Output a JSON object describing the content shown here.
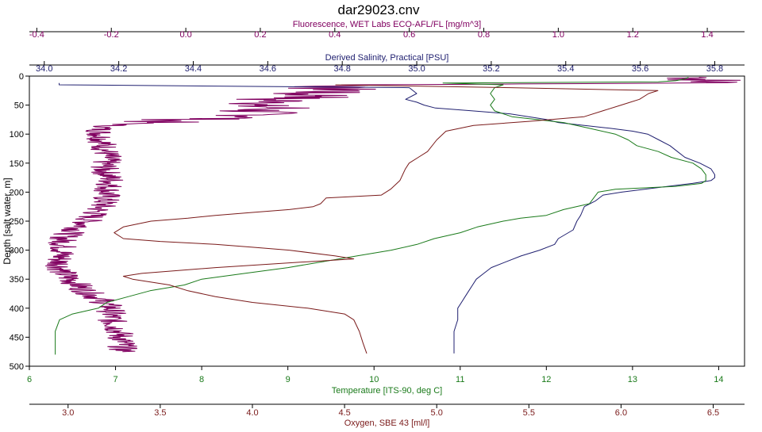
{
  "colors": {
    "fluorescence": "#800060",
    "salinity": "#202070",
    "temperature": "#1a7a1a",
    "oxygen": "#7a1a1a",
    "axis": "#000000",
    "background": "#ffffff"
  },
  "chart_data": {
    "type": "line",
    "title": "dar29023.cnv",
    "grid": false,
    "legend": "none",
    "y_axis": {
      "label": "Depth [salt water, m]",
      "range": [
        0,
        500
      ],
      "inverted": true,
      "ticks": [
        "0",
        "50",
        "100",
        "150",
        "200",
        "250",
        "300",
        "350",
        "400",
        "450",
        "500"
      ]
    },
    "x_axes": [
      {
        "key": "fluorescence",
        "label": "Fluorescence, WET Labs ECO-AFL/FL [mg/m^3]",
        "position": "top",
        "range": [
          -0.42,
          1.5
        ],
        "ticks": [
          "-0.4",
          "-0.2",
          "0.0",
          "0.2",
          "0.4",
          "0.6",
          "0.8",
          "1.0",
          "1.2",
          "1.4"
        ]
      },
      {
        "key": "salinity",
        "label": "Derived Salinity, Practical [PSU]",
        "position": "top",
        "range": [
          33.96,
          35.88
        ],
        "ticks": [
          "34.0",
          "34.2",
          "34.4",
          "34.6",
          "34.8",
          "35.0",
          "35.2",
          "35.4",
          "35.6",
          "35.8"
        ]
      },
      {
        "key": "temperature",
        "label": "Temperature [ITS-90, deg C]",
        "position": "bottom",
        "range": [
          6.0,
          14.3
        ],
        "ticks": [
          "6",
          "7",
          "8",
          "9",
          "10",
          "11",
          "12",
          "13",
          "14"
        ]
      },
      {
        "key": "oxygen",
        "label": "Oxygen, SBE 43 [ml/l]",
        "position": "bottom",
        "range": [
          2.79,
          6.67
        ],
        "ticks": [
          "3.0",
          "3.5",
          "4.0",
          "4.5",
          "5.0",
          "5.5",
          "6.0",
          "6.5"
        ]
      }
    ],
    "series": [
      {
        "axis": "fluorescence",
        "noise": 0.04,
        "points": [
          [
            1.38,
            2
          ],
          [
            1.4,
            8
          ],
          [
            1.42,
            12
          ],
          [
            0.5,
            15
          ],
          [
            0.35,
            20
          ],
          [
            0.45,
            25
          ],
          [
            0.3,
            30
          ],
          [
            0.4,
            35
          ],
          [
            0.2,
            40
          ],
          [
            0.3,
            45
          ],
          [
            0.15,
            50
          ],
          [
            0.25,
            55
          ],
          [
            0.18,
            60
          ],
          [
            0.2,
            70
          ],
          [
            0.0,
            75
          ],
          [
            -0.1,
            80
          ],
          [
            -0.2,
            85
          ],
          [
            -0.23,
            90
          ],
          [
            -0.23,
            100
          ],
          [
            -0.22,
            120
          ],
          [
            -0.21,
            140
          ],
          [
            -0.22,
            160
          ],
          [
            -0.2,
            180
          ],
          [
            -0.21,
            200
          ],
          [
            -0.22,
            220
          ],
          [
            -0.25,
            240
          ],
          [
            -0.28,
            260
          ],
          [
            -0.31,
            270
          ],
          [
            -0.33,
            280
          ],
          [
            -0.33,
            300
          ],
          [
            -0.34,
            320
          ],
          [
            -0.33,
            340
          ],
          [
            -0.3,
            355
          ],
          [
            -0.27,
            370
          ],
          [
            -0.23,
            385
          ],
          [
            -0.2,
            400
          ],
          [
            -0.2,
            420
          ],
          [
            -0.18,
            440
          ],
          [
            -0.17,
            460
          ],
          [
            -0.17,
            475
          ]
        ]
      },
      {
        "axis": "salinity",
        "noise": 0,
        "points": [
          [
            34.04,
            12
          ],
          [
            34.04,
            15
          ],
          [
            34.98,
            20
          ],
          [
            35.0,
            30
          ],
          [
            34.97,
            40
          ],
          [
            35.0,
            45
          ],
          [
            35.02,
            50
          ],
          [
            35.05,
            55
          ],
          [
            35.15,
            60
          ],
          [
            35.25,
            65
          ],
          [
            35.3,
            70
          ],
          [
            35.35,
            75
          ],
          [
            35.38,
            80
          ],
          [
            35.45,
            85
          ],
          [
            35.52,
            90
          ],
          [
            35.58,
            95
          ],
          [
            35.62,
            100
          ],
          [
            35.65,
            110
          ],
          [
            35.68,
            120
          ],
          [
            35.7,
            130
          ],
          [
            35.72,
            140
          ],
          [
            35.76,
            150
          ],
          [
            35.79,
            160
          ],
          [
            35.8,
            170
          ],
          [
            35.8,
            175
          ],
          [
            35.79,
            180
          ],
          [
            35.74,
            185
          ],
          [
            35.7,
            188
          ],
          [
            35.65,
            192
          ],
          [
            35.55,
            200
          ],
          [
            35.5,
            205
          ],
          [
            35.48,
            215
          ],
          [
            35.45,
            225
          ],
          [
            35.44,
            240
          ],
          [
            35.43,
            250
          ],
          [
            35.42,
            265
          ],
          [
            35.38,
            280
          ],
          [
            35.37,
            290
          ],
          [
            35.33,
            300
          ],
          [
            35.28,
            310
          ],
          [
            35.24,
            320
          ],
          [
            35.2,
            330
          ],
          [
            35.18,
            340
          ],
          [
            35.16,
            350
          ],
          [
            35.15,
            360
          ],
          [
            35.14,
            370
          ],
          [
            35.13,
            380
          ],
          [
            35.12,
            390
          ],
          [
            35.11,
            400
          ],
          [
            35.11,
            420
          ],
          [
            35.1,
            440
          ],
          [
            35.1,
            460
          ],
          [
            35.1,
            478
          ]
        ]
      },
      {
        "axis": "temperature",
        "noise": 0,
        "points": [
          [
            13.65,
            2
          ],
          [
            13.6,
            5
          ],
          [
            13.5,
            8
          ],
          [
            13.3,
            10
          ],
          [
            10.8,
            12
          ],
          [
            11.5,
            15
          ],
          [
            11.4,
            20
          ],
          [
            11.35,
            30
          ],
          [
            11.4,
            40
          ],
          [
            11.35,
            50
          ],
          [
            11.4,
            60
          ],
          [
            11.6,
            70
          ],
          [
            12.2,
            80
          ],
          [
            12.5,
            90
          ],
          [
            12.8,
            100
          ],
          [
            12.95,
            110
          ],
          [
            13.05,
            120
          ],
          [
            13.3,
            130
          ],
          [
            13.45,
            140
          ],
          [
            13.7,
            150
          ],
          [
            13.8,
            160
          ],
          [
            13.85,
            170
          ],
          [
            13.85,
            180
          ],
          [
            13.8,
            185
          ],
          [
            13.5,
            190
          ],
          [
            12.8,
            195
          ],
          [
            12.6,
            200
          ],
          [
            12.55,
            210
          ],
          [
            12.5,
            220
          ],
          [
            12.2,
            230
          ],
          [
            12.0,
            240
          ],
          [
            11.7,
            245
          ],
          [
            11.5,
            250
          ],
          [
            11.2,
            260
          ],
          [
            11.0,
            270
          ],
          [
            10.7,
            280
          ],
          [
            10.5,
            290
          ],
          [
            10.2,
            300
          ],
          [
            9.8,
            310
          ],
          [
            9.4,
            320
          ],
          [
            9.0,
            330
          ],
          [
            8.5,
            340
          ],
          [
            8.0,
            350
          ],
          [
            7.8,
            360
          ],
          [
            7.4,
            370
          ],
          [
            7.15,
            380
          ],
          [
            6.9,
            390
          ],
          [
            6.8,
            400
          ],
          [
            6.5,
            410
          ],
          [
            6.35,
            420
          ],
          [
            6.3,
            440
          ],
          [
            6.3,
            460
          ],
          [
            6.3,
            480
          ]
        ]
      },
      {
        "axis": "oxygen",
        "noise": 0,
        "points": [
          [
            4.45,
            15
          ],
          [
            5.4,
            20
          ],
          [
            6.2,
            25
          ],
          [
            6.15,
            30
          ],
          [
            6.1,
            40
          ],
          [
            6.0,
            50
          ],
          [
            5.9,
            60
          ],
          [
            5.8,
            70
          ],
          [
            5.5,
            78
          ],
          [
            5.2,
            85
          ],
          [
            5.05,
            95
          ],
          [
            5.0,
            110
          ],
          [
            4.95,
            130
          ],
          [
            4.9,
            140
          ],
          [
            4.85,
            150
          ],
          [
            4.83,
            160
          ],
          [
            4.8,
            180
          ],
          [
            4.75,
            195
          ],
          [
            4.7,
            205
          ],
          [
            4.4,
            210
          ],
          [
            4.37,
            220
          ],
          [
            4.33,
            225
          ],
          [
            4.2,
            230
          ],
          [
            4.0,
            235
          ],
          [
            3.8,
            240
          ],
          [
            3.65,
            245
          ],
          [
            3.45,
            250
          ],
          [
            3.3,
            260
          ],
          [
            3.25,
            270
          ],
          [
            3.3,
            280
          ],
          [
            3.5,
            285
          ],
          [
            3.8,
            290
          ],
          [
            4.0,
            295
          ],
          [
            4.2,
            300
          ],
          [
            4.45,
            310
          ],
          [
            4.55,
            315
          ],
          [
            4.3,
            320
          ],
          [
            3.8,
            330
          ],
          [
            3.4,
            340
          ],
          [
            3.3,
            345
          ],
          [
            3.35,
            350
          ],
          [
            3.45,
            355
          ],
          [
            3.55,
            360
          ],
          [
            3.65,
            370
          ],
          [
            3.8,
            380
          ],
          [
            4.0,
            390
          ],
          [
            4.3,
            400
          ],
          [
            4.5,
            410
          ],
          [
            4.55,
            420
          ],
          [
            4.58,
            440
          ],
          [
            4.6,
            460
          ],
          [
            4.62,
            478
          ]
        ]
      }
    ]
  }
}
